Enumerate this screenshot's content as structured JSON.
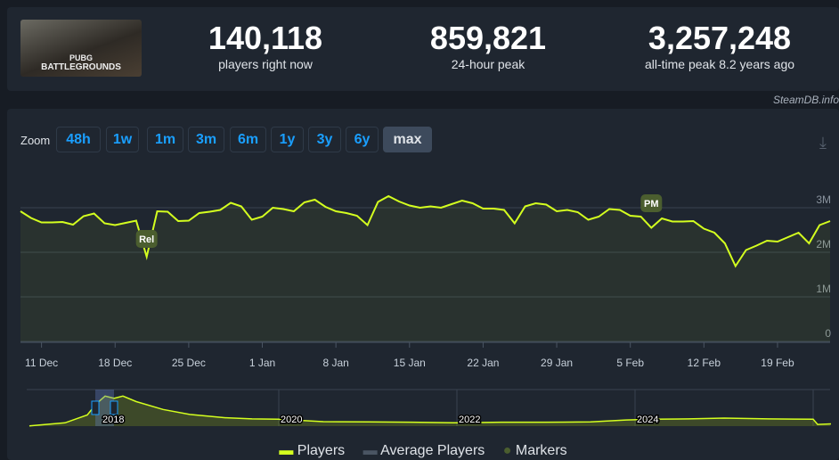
{
  "header": {
    "game_logo_text": "PUBG BATTLEGROUNDS",
    "stats": [
      {
        "value": "140,118",
        "label": "players right now"
      },
      {
        "value": "859,821",
        "label": "24-hour peak"
      },
      {
        "value": "3,257,248",
        "label": "all-time peak 8.2 years ago"
      }
    ]
  },
  "credit": "SteamDB.info",
  "zoom": {
    "label": "Zoom",
    "buttons": [
      "48h",
      "1w",
      "1m",
      "3m",
      "6m",
      "1y",
      "3y",
      "6y",
      "max"
    ],
    "active": "max"
  },
  "legend": {
    "players": "Players",
    "average": "Average Players",
    "markers": "Markers"
  },
  "colors": {
    "players": "#d4ff1f",
    "average": "#4a5563",
    "markers": "#4b5e2f"
  },
  "chart_data": {
    "type": "line",
    "x_ticks": [
      "11 Dec",
      "18 Dec",
      "25 Dec",
      "1 Jan",
      "8 Jan",
      "15 Jan",
      "22 Jan",
      "29 Jan",
      "5 Feb",
      "12 Feb",
      "19 Feb"
    ],
    "y_ticks": [
      "0",
      "1M",
      "2M",
      "3M"
    ],
    "ylim": [
      0,
      3300000
    ],
    "grid": true,
    "x_range": [
      "Dec 9",
      "Feb 24"
    ],
    "series": [
      {
        "name": "Players",
        "unit": "millions",
        "start": "Dec 9",
        "interval": "daily",
        "values": [
          2.92,
          2.77,
          2.67,
          2.67,
          2.68,
          2.62,
          2.81,
          2.87,
          2.65,
          2.61,
          2.66,
          2.71,
          1.9,
          2.92,
          2.91,
          2.7,
          2.71,
          2.88,
          2.91,
          2.95,
          3.11,
          3.03,
          2.73,
          2.8,
          3.0,
          2.97,
          2.92,
          3.12,
          3.18,
          3.02,
          2.92,
          2.88,
          2.82,
          2.61,
          3.13,
          3.26,
          3.14,
          3.05,
          3.0,
          3.03,
          3.0,
          3.08,
          3.16,
          3.1,
          2.98,
          2.98,
          2.95,
          2.65,
          3.03,
          3.1,
          3.07,
          2.92,
          2.95,
          2.9,
          2.73,
          2.8,
          2.97,
          2.95,
          2.82,
          2.8,
          2.55,
          2.76,
          2.69,
          2.69,
          2.7,
          2.53,
          2.44,
          2.2,
          1.69,
          2.05,
          2.15,
          2.26,
          2.24,
          2.34,
          2.44,
          2.2,
          2.61,
          2.7
        ]
      }
    ],
    "markers": [
      {
        "label": "Rel",
        "date": "Dec 21"
      },
      {
        "label": "PM",
        "date": "Feb 8"
      }
    ],
    "overview": {
      "year_ticks": [
        "2018",
        "2020",
        "2022",
        "2024"
      ],
      "points": [
        [
          2017.2,
          0.02
        ],
        [
          2017.6,
          0.3
        ],
        [
          2017.85,
          1.0
        ],
        [
          2017.95,
          2.0
        ],
        [
          2018.05,
          2.7
        ],
        [
          2018.15,
          2.5
        ],
        [
          2018.25,
          2.7
        ],
        [
          2018.4,
          2.2
        ],
        [
          2018.7,
          1.5
        ],
        [
          2019.0,
          1.05
        ],
        [
          2019.4,
          0.75
        ],
        [
          2019.7,
          0.65
        ],
        [
          2020.0,
          0.62
        ],
        [
          2020.5,
          0.4
        ],
        [
          2021.0,
          0.38
        ],
        [
          2021.5,
          0.35
        ],
        [
          2022.0,
          0.3
        ],
        [
          2022.5,
          0.35
        ],
        [
          2023.0,
          0.35
        ],
        [
          2023.5,
          0.38
        ],
        [
          2023.9,
          0.55
        ],
        [
          2024.2,
          0.62
        ],
        [
          2024.6,
          0.65
        ],
        [
          2025.0,
          0.72
        ],
        [
          2025.5,
          0.65
        ],
        [
          2026.0,
          0.62
        ],
        [
          2026.05,
          0.15
        ],
        [
          2026.2,
          0.2
        ]
      ]
    }
  }
}
